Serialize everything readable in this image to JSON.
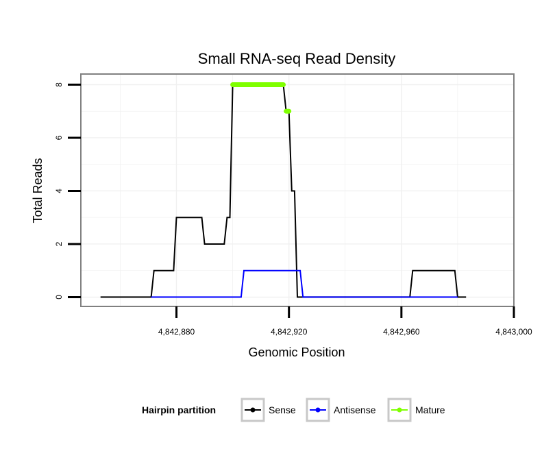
{
  "chart_data": {
    "type": "line",
    "title": "Small RNA-seq Read Density",
    "xlabel": "Genomic Position",
    "ylabel": "Total Reads",
    "xlim": [
      4842846,
      4843000
    ],
    "ylim": [
      -0.35,
      8.4
    ],
    "x_ticks": [
      4842880,
      4842920,
      4842960,
      4843000
    ],
    "x_tick_labels": [
      "4,842,880",
      "4,842,920",
      "4,842,960",
      "4,843,000"
    ],
    "y_ticks": [
      0,
      2,
      4,
      6,
      8
    ],
    "y_tick_labels": [
      "0",
      "2",
      "4",
      "6",
      "8"
    ],
    "grid": true,
    "legend": {
      "title": "Hairpin partition",
      "position": "bottom",
      "entries": [
        "Sense",
        "Antisense",
        "Mature"
      ]
    },
    "series": [
      {
        "name": "Sense",
        "color": "#000000",
        "points": [
          [
            4842853,
            0
          ],
          [
            4842871,
            0
          ],
          [
            4842872,
            1
          ],
          [
            4842879,
            1
          ],
          [
            4842880,
            3
          ],
          [
            4842889,
            3
          ],
          [
            4842890,
            2
          ],
          [
            4842897,
            2
          ],
          [
            4842898,
            3
          ],
          [
            4842899,
            3
          ],
          [
            4842900,
            8
          ],
          [
            4842918,
            8
          ],
          [
            4842919,
            7
          ],
          [
            4842920,
            7
          ],
          [
            4842921,
            4
          ],
          [
            4842922,
            4
          ],
          [
            4842923,
            0
          ],
          [
            4842963,
            0
          ],
          [
            4842964,
            1
          ],
          [
            4842979,
            1
          ],
          [
            4842980,
            0
          ],
          [
            4842983,
            0
          ]
        ]
      },
      {
        "name": "Antisense",
        "color": "#0000ff",
        "points": [
          [
            4842871,
            0
          ],
          [
            4842903,
            0
          ],
          [
            4842904,
            1
          ],
          [
            4842924,
            1
          ],
          [
            4842925,
            0
          ],
          [
            4842963,
            0
          ],
          [
            4842980,
            0
          ]
        ]
      },
      {
        "name": "Mature",
        "color": "#7fff00",
        "segments": [
          [
            [
              4842900,
              8
            ],
            [
              4842918,
              8
            ]
          ],
          [
            [
              4842919,
              7
            ],
            [
              4842920,
              7
            ]
          ]
        ]
      }
    ]
  }
}
